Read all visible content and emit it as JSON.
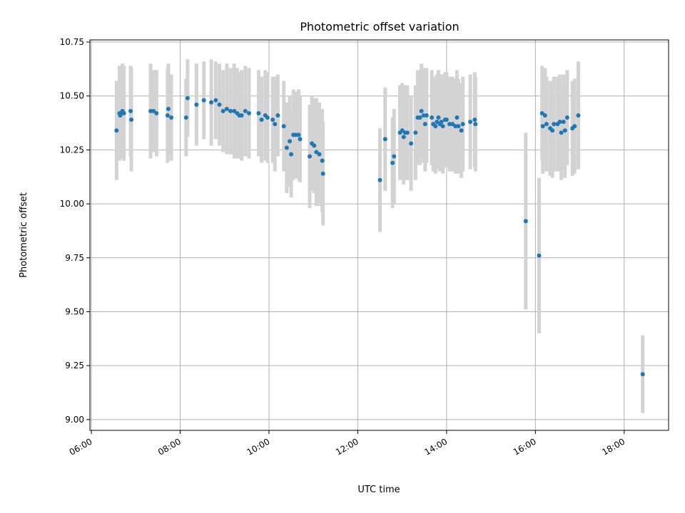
{
  "chart_data": {
    "type": "scatter",
    "title": "Photometric offset variation",
    "xlabel": "UTC time",
    "ylabel": "Photometric offset",
    "xlim": [
      "05:58",
      "19:00"
    ],
    "ylim": [
      8.95,
      10.76
    ],
    "x_ticks": [
      "06:00",
      "08:00",
      "10:00",
      "12:00",
      "14:00",
      "16:00",
      "18:00"
    ],
    "y_ticks": [
      "9.00",
      "9.25",
      "9.50",
      "9.75",
      "10.00",
      "10.25",
      "10.50",
      "10.75"
    ],
    "grid": true,
    "colors": {
      "point": "#1f77b4",
      "errorbar": "#d3d3d3",
      "grid": "#b0b0b0"
    },
    "series": [
      {
        "values": [
          {
            "x": "06:34",
            "y": 10.34,
            "err": 0.23
          },
          {
            "x": "06:38",
            "y": 10.42,
            "err": 0.22
          },
          {
            "x": "06:39",
            "y": 10.41,
            "err": 0.2
          },
          {
            "x": "06:40",
            "y": 10.42,
            "err": 0.21
          },
          {
            "x": "06:42",
            "y": 10.43,
            "err": 0.22
          },
          {
            "x": "06:44",
            "y": 10.42,
            "err": 0.22
          },
          {
            "x": "06:53",
            "y": 10.43,
            "err": 0.21
          },
          {
            "x": "06:54",
            "y": 10.39,
            "err": 0.24
          },
          {
            "x": "07:20",
            "y": 10.43,
            "err": 0.22
          },
          {
            "x": "07:24",
            "y": 10.43,
            "err": 0.19
          },
          {
            "x": "07:28",
            "y": 10.42,
            "err": 0.2
          },
          {
            "x": "07:43",
            "y": 10.41,
            "err": 0.22
          },
          {
            "x": "07:44",
            "y": 10.44,
            "err": 0.21
          },
          {
            "x": "07:48",
            "y": 10.4,
            "err": 0.2
          },
          {
            "x": "08:08",
            "y": 10.4,
            "err": 0.18
          },
          {
            "x": "08:10",
            "y": 10.49,
            "err": 0.18
          },
          {
            "x": "08:22",
            "y": 10.46,
            "err": 0.19
          },
          {
            "x": "08:32",
            "y": 10.48,
            "err": 0.18
          },
          {
            "x": "08:42",
            "y": 10.47,
            "err": 0.2
          },
          {
            "x": "08:48",
            "y": 10.48,
            "err": 0.18
          },
          {
            "x": "08:53",
            "y": 10.46,
            "err": 0.19
          },
          {
            "x": "08:58",
            "y": 10.43,
            "err": 0.19
          },
          {
            "x": "09:03",
            "y": 10.44,
            "err": 0.21
          },
          {
            "x": "09:08",
            "y": 10.43,
            "err": 0.2
          },
          {
            "x": "09:13",
            "y": 10.43,
            "err": 0.22
          },
          {
            "x": "09:17",
            "y": 10.42,
            "err": 0.21
          },
          {
            "x": "09:20",
            "y": 10.41,
            "err": 0.2
          },
          {
            "x": "09:23",
            "y": 10.41,
            "err": 0.21
          },
          {
            "x": "09:28",
            "y": 10.43,
            "err": 0.21
          },
          {
            "x": "09:33",
            "y": 10.42,
            "err": 0.21
          },
          {
            "x": "09:46",
            "y": 10.42,
            "err": 0.2
          },
          {
            "x": "09:50",
            "y": 10.39,
            "err": 0.2
          },
          {
            "x": "09:55",
            "y": 10.41,
            "err": 0.21
          },
          {
            "x": "09:58",
            "y": 10.4,
            "err": 0.21
          },
          {
            "x": "10:05",
            "y": 10.39,
            "err": 0.2
          },
          {
            "x": "10:08",
            "y": 10.37,
            "err": 0.22
          },
          {
            "x": "10:12",
            "y": 10.41,
            "err": 0.19
          },
          {
            "x": "10:20",
            "y": 10.36,
            "err": 0.21
          },
          {
            "x": "10:24",
            "y": 10.26,
            "err": 0.21
          },
          {
            "x": "10:28",
            "y": 10.29,
            "err": 0.21
          },
          {
            "x": "10:30",
            "y": 10.23,
            "err": 0.2
          },
          {
            "x": "10:33",
            "y": 10.32,
            "err": 0.21
          },
          {
            "x": "10:36",
            "y": 10.32,
            "err": 0.2
          },
          {
            "x": "10:40",
            "y": 10.32,
            "err": 0.21
          },
          {
            "x": "10:42",
            "y": 10.3,
            "err": 0.2
          },
          {
            "x": "10:55",
            "y": 10.22,
            "err": 0.24
          },
          {
            "x": "10:58",
            "y": 10.28,
            "err": 0.22
          },
          {
            "x": "11:01",
            "y": 10.27,
            "err": 0.22
          },
          {
            "x": "11:04",
            "y": 10.24,
            "err": 0.25
          },
          {
            "x": "11:08",
            "y": 10.23,
            "err": 0.24
          },
          {
            "x": "11:12",
            "y": 10.2,
            "err": 0.24
          },
          {
            "x": "11:13",
            "y": 10.14,
            "err": 0.24
          },
          {
            "x": "12:30",
            "y": 10.11,
            "err": 0.24
          },
          {
            "x": "12:37",
            "y": 10.3,
            "err": 0.24
          },
          {
            "x": "12:47",
            "y": 10.19,
            "err": 0.21
          },
          {
            "x": "12:49",
            "y": 10.22,
            "err": 0.22
          },
          {
            "x": "12:57",
            "y": 10.33,
            "err": 0.22
          },
          {
            "x": "13:00",
            "y": 10.34,
            "err": 0.22
          },
          {
            "x": "13:02",
            "y": 10.31,
            "err": 0.22
          },
          {
            "x": "13:04",
            "y": 10.33,
            "err": 0.22
          },
          {
            "x": "13:07",
            "y": 10.33,
            "err": 0.22
          },
          {
            "x": "13:12",
            "y": 10.28,
            "err": 0.22
          },
          {
            "x": "13:18",
            "y": 10.33,
            "err": 0.22
          },
          {
            "x": "13:21",
            "y": 10.4,
            "err": 0.22
          },
          {
            "x": "13:24",
            "y": 10.4,
            "err": 0.22
          },
          {
            "x": "13:26",
            "y": 10.43,
            "err": 0.22
          },
          {
            "x": "13:29",
            "y": 10.41,
            "err": 0.22
          },
          {
            "x": "13:31",
            "y": 10.37,
            "err": 0.22
          },
          {
            "x": "13:33",
            "y": 10.41,
            "err": 0.22
          },
          {
            "x": "13:40",
            "y": 10.4,
            "err": 0.22
          },
          {
            "x": "13:42",
            "y": 10.37,
            "err": 0.22
          },
          {
            "x": "13:45",
            "y": 10.36,
            "err": 0.22
          },
          {
            "x": "13:47",
            "y": 10.38,
            "err": 0.22
          },
          {
            "x": "13:49",
            "y": 10.4,
            "err": 0.22
          },
          {
            "x": "13:51",
            "y": 10.37,
            "err": 0.22
          },
          {
            "x": "13:53",
            "y": 10.38,
            "err": 0.22
          },
          {
            "x": "13:55",
            "y": 10.36,
            "err": 0.22
          },
          {
            "x": "13:58",
            "y": 10.39,
            "err": 0.22
          },
          {
            "x": "14:00",
            "y": 10.39,
            "err": 0.22
          },
          {
            "x": "14:04",
            "y": 10.37,
            "err": 0.22
          },
          {
            "x": "14:08",
            "y": 10.37,
            "err": 0.22
          },
          {
            "x": "14:12",
            "y": 10.36,
            "err": 0.22
          },
          {
            "x": "14:14",
            "y": 10.4,
            "err": 0.22
          },
          {
            "x": "14:16",
            "y": 10.36,
            "err": 0.22
          },
          {
            "x": "14:20",
            "y": 10.34,
            "err": 0.22
          },
          {
            "x": "14:22",
            "y": 10.37,
            "err": 0.22
          },
          {
            "x": "14:32",
            "y": 10.38,
            "err": 0.22
          },
          {
            "x": "14:38",
            "y": 10.39,
            "err": 0.22
          },
          {
            "x": "14:39",
            "y": 10.37,
            "err": 0.22
          },
          {
            "x": "15:47",
            "y": 9.92,
            "err": 0.41
          },
          {
            "x": "16:05",
            "y": 9.76,
            "err": 0.36
          },
          {
            "x": "16:09",
            "y": 10.42,
            "err": 0.22
          },
          {
            "x": "16:10",
            "y": 10.36,
            "err": 0.22
          },
          {
            "x": "16:13",
            "y": 10.41,
            "err": 0.22
          },
          {
            "x": "16:15",
            "y": 10.37,
            "err": 0.22
          },
          {
            "x": "16:20",
            "y": 10.35,
            "err": 0.22
          },
          {
            "x": "16:23",
            "y": 10.34,
            "err": 0.22
          },
          {
            "x": "16:25",
            "y": 10.37,
            "err": 0.22
          },
          {
            "x": "16:30",
            "y": 10.37,
            "err": 0.22
          },
          {
            "x": "16:33",
            "y": 10.38,
            "err": 0.22
          },
          {
            "x": "16:35",
            "y": 10.33,
            "err": 0.22
          },
          {
            "x": "16:38",
            "y": 10.38,
            "err": 0.22
          },
          {
            "x": "16:40",
            "y": 10.34,
            "err": 0.22
          },
          {
            "x": "16:43",
            "y": 10.4,
            "err": 0.22
          },
          {
            "x": "16:50",
            "y": 10.35,
            "err": 0.22
          },
          {
            "x": "16:53",
            "y": 10.36,
            "err": 0.22
          },
          {
            "x": "16:58",
            "y": 10.41,
            "err": 0.25
          },
          {
            "x": "18:25",
            "y": 9.21,
            "err": 0.18
          }
        ]
      }
    ]
  }
}
